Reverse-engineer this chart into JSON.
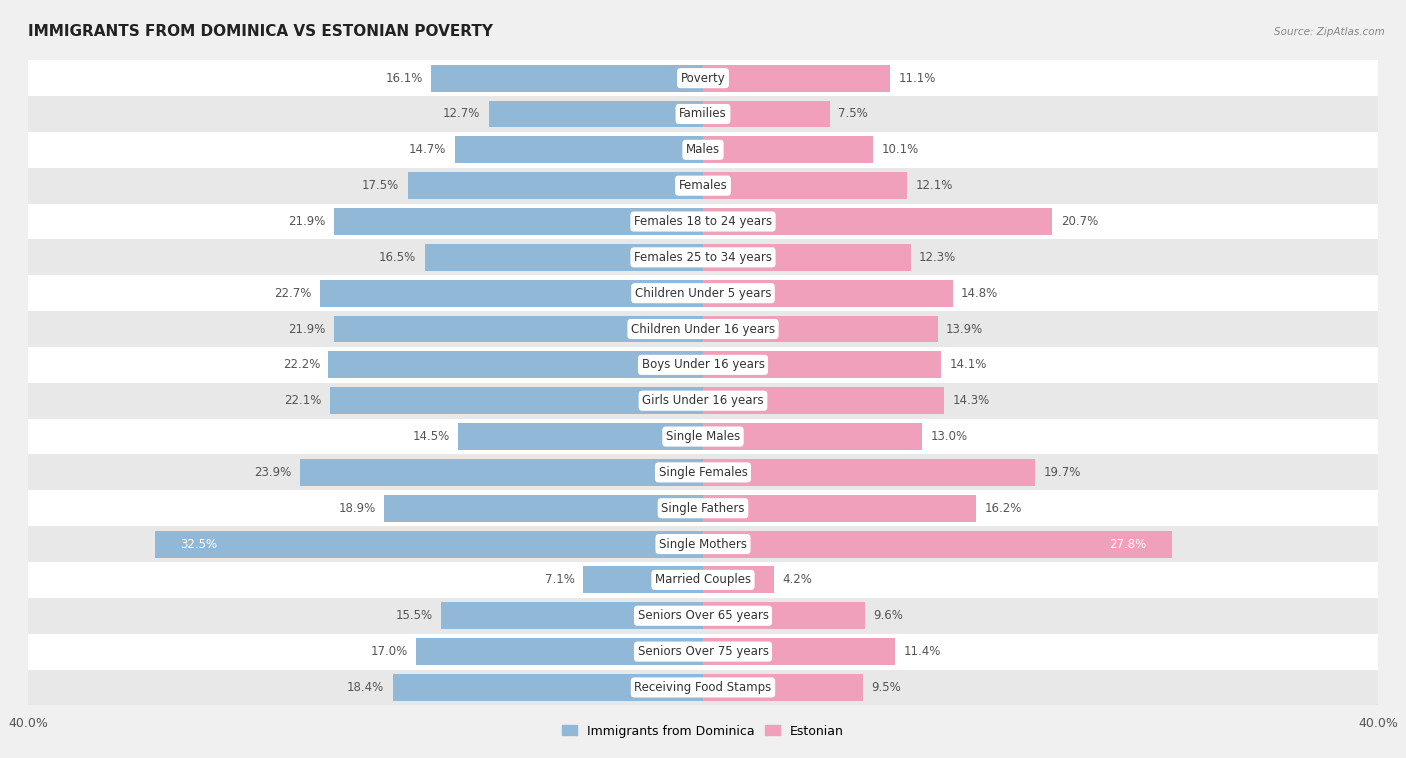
{
  "title": "IMMIGRANTS FROM DOMINICA VS ESTONIAN POVERTY",
  "source": "Source: ZipAtlas.com",
  "categories": [
    "Poverty",
    "Families",
    "Males",
    "Females",
    "Females 18 to 24 years",
    "Females 25 to 34 years",
    "Children Under 5 years",
    "Children Under 16 years",
    "Boys Under 16 years",
    "Girls Under 16 years",
    "Single Males",
    "Single Females",
    "Single Fathers",
    "Single Mothers",
    "Married Couples",
    "Seniors Over 65 years",
    "Seniors Over 75 years",
    "Receiving Food Stamps"
  ],
  "dominica_values": [
    16.1,
    12.7,
    14.7,
    17.5,
    21.9,
    16.5,
    22.7,
    21.9,
    22.2,
    22.1,
    14.5,
    23.9,
    18.9,
    32.5,
    7.1,
    15.5,
    17.0,
    18.4
  ],
  "estonian_values": [
    11.1,
    7.5,
    10.1,
    12.1,
    20.7,
    12.3,
    14.8,
    13.9,
    14.1,
    14.3,
    13.0,
    19.7,
    16.2,
    27.8,
    4.2,
    9.6,
    11.4,
    9.5
  ],
  "dominica_color": "#92b8d8",
  "estonian_color": "#f0a0ba",
  "dominica_label": "Immigrants from Dominica",
  "estonian_label": "Estonian",
  "axis_limit": 40.0,
  "background_color": "#f0f0f0",
  "row_bg_even": "#ffffff",
  "row_bg_odd": "#e8e8e8",
  "bar_height": 0.75,
  "label_fontsize": 8.5,
  "title_fontsize": 11,
  "value_fontsize": 8.5
}
